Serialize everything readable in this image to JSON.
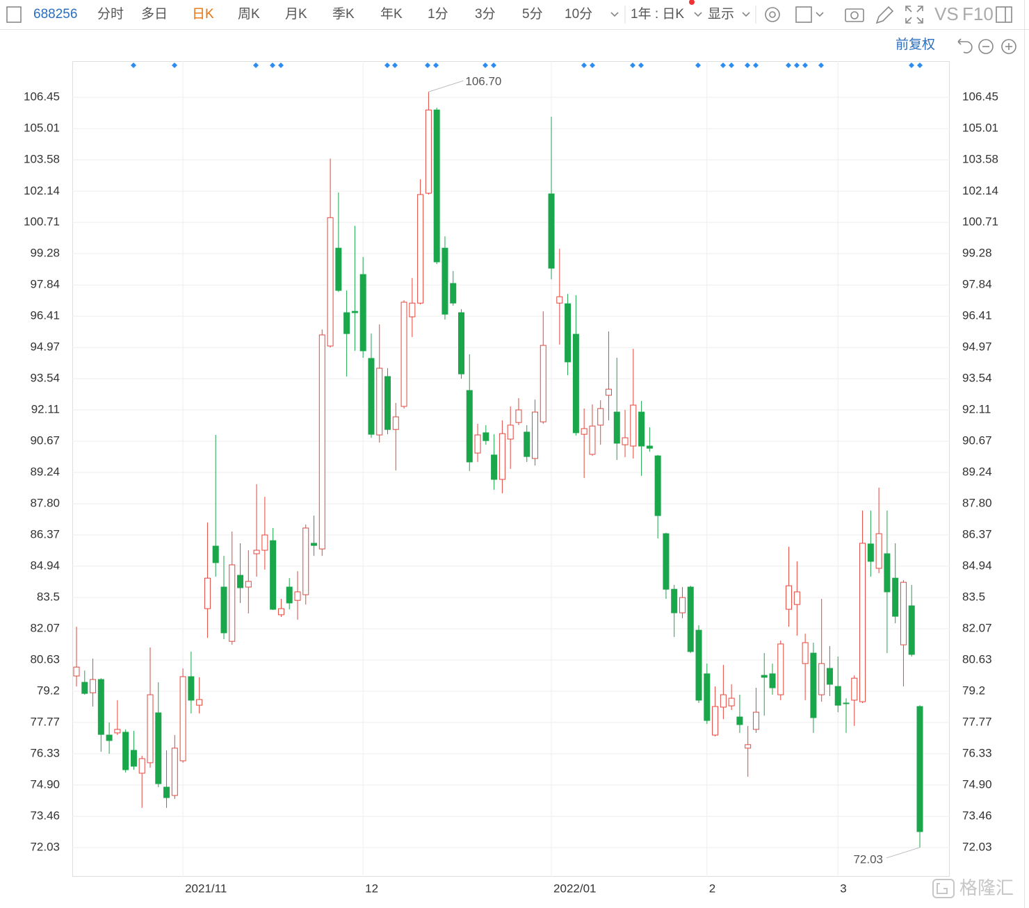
{
  "toolbar": {
    "code": "688256",
    "periods": [
      "分时",
      "多日",
      "日K",
      "周K",
      "月K",
      "季K",
      "年K",
      "1分",
      "3分",
      "5分",
      "10分"
    ],
    "active": 2,
    "range": "1年 : 日K",
    "display": "显示",
    "compare": "VS",
    "f10": "F10",
    "adjust": "前复权"
  },
  "watermark": "格隆汇",
  "chart_data": {
    "type": "candlestick",
    "categories": [
      null,
      null,
      null,
      null,
      null,
      null,
      null,
      null,
      null,
      null,
      null,
      null,
      null,
      "2021/11",
      null,
      null,
      null,
      null,
      null,
      null,
      null,
      null,
      null,
      null,
      null,
      null,
      null,
      null,
      null,
      null,
      null,
      null,
      null,
      null,
      null,
      "12",
      null,
      null,
      null,
      null,
      null,
      null,
      null,
      null,
      null,
      null,
      null,
      null,
      null,
      null,
      null,
      null,
      null,
      null,
      null,
      null,
      null,
      null,
      "2022/01",
      null,
      null,
      null,
      null,
      null,
      null,
      null,
      null,
      null,
      null,
      null,
      null,
      null,
      null,
      null,
      null,
      null,
      null,
      "2",
      null,
      null,
      null,
      null,
      null,
      null,
      null,
      null,
      null,
      null,
      null,
      null,
      null,
      null,
      null,
      "3",
      null,
      null,
      null,
      null,
      null,
      null,
      null,
      null,
      null,
      null
    ],
    "open": [
      79.9,
      79.61,
      79.13,
      79.74,
      77.19,
      77.29,
      77.32,
      76.49,
      75.44,
      75.92,
      78.21,
      74.8,
      74.42,
      76.01,
      79.87,
      78.56,
      82.99,
      85.86,
      83.98,
      81.49,
      84.52,
      83.98,
      85.51,
      85.67,
      86.11,
      82.71,
      83.98,
      83.37,
      83.63,
      85.99,
      85.73,
      95.04,
      99.53,
      96.57,
      96.63,
      98.32,
      94.47,
      90.96,
      93.64,
      91.21,
      92.27,
      96.38,
      97.01,
      102.05,
      105.87,
      99.53,
      97.91,
      96.57,
      93.0,
      90.13,
      91.06,
      90.04,
      88.92,
      90.77,
      91.53,
      91.09,
      89.88,
      91.56,
      102.02,
      97.01,
      96.98,
      95.58,
      90.99,
      90.07,
      91.41,
      92.78,
      92.01,
      90.51,
      90.45,
      92.01,
      90.45,
      90.0,
      86.43,
      83.88,
      82.8,
      83.98,
      82.0,
      80.0,
      77.19,
      78.47,
      78.53,
      78.02,
      76.59,
      77.45,
      79.93,
      80.0,
      79.04,
      82.96,
      83.18,
      80.47,
      80.95,
      79.04,
      80.25,
      79.42,
      78.66,
      78.79,
      78.72,
      85.96,
      84.84,
      85.51,
      84.39,
      81.33,
      83.12,
      78.5
    ],
    "high": [
      82.16,
      80.15,
      80.7,
      79.8,
      77.77,
      78.79,
      77.45,
      77.38,
      76.24,
      81.21,
      79.61,
      76.49,
      77.19,
      80.25,
      81.02,
      79.84,
      86.94,
      90.96,
      85.41,
      86.53,
      85.99,
      85.67,
      88.7,
      88.12,
      86.69,
      83.44,
      84.39,
      84.71,
      86.85,
      87.26,
      95.8,
      103.64,
      102.08,
      97.59,
      100.55,
      99.12,
      95.61,
      96.03,
      94.02,
      92.43,
      97.14,
      98.16,
      102.69,
      106.7,
      105.97,
      100.07,
      98.48,
      96.73,
      94.66,
      91.47,
      91.41,
      90.99,
      91.63,
      92.27,
      92.65,
      91.41,
      92.58,
      96.63,
      105.56,
      99.5,
      97.43,
      97.37,
      92.17,
      92.36,
      92.55,
      95.71,
      94.5,
      92.11,
      94.91,
      92.52,
      91.31,
      90.04,
      86.47,
      84.08,
      83.98,
      84.04,
      82.23,
      80.47,
      79.42,
      80.41,
      79.52,
      79.04,
      77.61,
      79.36,
      80.95,
      80.47,
      81.53,
      85.83,
      85.16,
      81.84,
      81.43,
      83.44,
      81.27,
      80.79,
      78.88,
      79.93,
      87.49,
      87.49,
      88.54,
      87.49,
      85.99,
      84.3,
      84.08,
      78.56
    ],
    "low": [
      79.42,
      79.04,
      78.5,
      76.43,
      76.33,
      77.19,
      75.47,
      75.6,
      73.85,
      75.69,
      74.8,
      73.85,
      74.26,
      75.92,
      78.18,
      78.18,
      81.65,
      84.46,
      81.59,
      81.33,
      83.25,
      82.77,
      84.46,
      84.78,
      82.93,
      82.61,
      82.96,
      82.48,
      83.18,
      85.41,
      85.41,
      94.97,
      97.52,
      93.64,
      94.82,
      94.5,
      90.83,
      90.61,
      90.99,
      89.33,
      92.17,
      95.45,
      96.95,
      101.99,
      98.8,
      96.25,
      96.89,
      93.54,
      89.3,
      89.72,
      90.51,
      88.44,
      88.28,
      89.4,
      91.41,
      89.72,
      89.56,
      91.47,
      98.1,
      95.1,
      93.7,
      90.93,
      88.98,
      90.0,
      90.51,
      91.63,
      89.81,
      89.94,
      89.88,
      89.08,
      90.19,
      86.21,
      83.44,
      81.69,
      82.55,
      80.95,
      78.66,
      77.7,
      77.13,
      77.92,
      78.34,
      77.29,
      75.28,
      77.29,
      78.08,
      79.04,
      78.79,
      82.16,
      81.75,
      78.79,
      77.29,
      78.72,
      78.98,
      78.24,
      77.29,
      77.61,
      78.66,
      84.46,
      84.62,
      80.95,
      82.32,
      79.42,
      80.79,
      72.03
    ],
    "close": [
      80.31,
      79.1,
      79.74,
      77.22,
      76.94,
      77.45,
      75.6,
      75.76,
      76.11,
      79.04,
      74.96,
      74.32,
      76.59,
      79.87,
      78.79,
      78.82,
      84.39,
      85.1,
      81.88,
      85.0,
      83.95,
      84.24,
      85.67,
      86.37,
      82.96,
      82.99,
      83.25,
      83.76,
      86.69,
      85.89,
      95.55,
      100.93,
      97.59,
      95.61,
      96.57,
      94.82,
      90.99,
      94.02,
      91.21,
      91.79,
      97.05,
      97.01,
      101.99,
      105.87,
      98.9,
      96.5,
      97.01,
      93.76,
      89.72,
      90.96,
      90.7,
      88.92,
      91.02,
      91.41,
      92.11,
      89.97,
      92.01,
      95.07,
      98.61,
      97.3,
      94.31,
      91.06,
      91.25,
      91.37,
      92.17,
      93.06,
      90.58,
      90.83,
      92.33,
      90.45,
      90.35,
      87.26,
      83.88,
      82.8,
      83.5,
      81.02,
      78.79,
      77.86,
      78.5,
      79.04,
      78.88,
      77.67,
      76.75,
      78.24,
      79.84,
      79.36,
      81.37,
      84.04,
      83.76,
      81.43,
      77.99,
      80.47,
      79.52,
      78.56,
      78.63,
      79.8,
      85.99,
      85.16,
      86.43,
      83.76,
      82.64,
      84.2,
      80.89,
      72.76
    ],
    "up_color": "#e2463c",
    "down_color": "#1aa64a",
    "high_label": "106.70",
    "low_label": "72.03",
    "ylim": [
      70.69,
      108.11
    ],
    "yticks": [
      72.03,
      73.46,
      {
        "value": 74.9,
        "label": "74.90"
      },
      76.33,
      77.77,
      79.2,
      80.63,
      82.07,
      83.5,
      84.94,
      86.37,
      {
        "value": 87.8,
        "label": "87.80"
      },
      89.24,
      90.67,
      92.11,
      93.54,
      94.97,
      96.41,
      97.84,
      99.28,
      100.71,
      102.14,
      103.58,
      105.01,
      106.45
    ],
    "grid": true
  }
}
